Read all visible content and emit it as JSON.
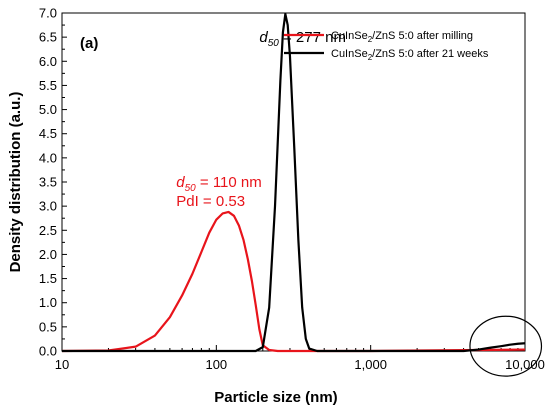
{
  "chart_data": {
    "type": "line",
    "panel_label": "(a)",
    "xlabel": "Particle size (nm)",
    "ylabel": "Density distribution (a.u.)",
    "xscale": "log",
    "xlim": [
      10,
      10000
    ],
    "ylim": [
      0,
      7.0
    ],
    "x_ticks": [
      10,
      100,
      1000,
      10000
    ],
    "x_tick_labels": [
      "10",
      "100",
      "1,000",
      "10,000"
    ],
    "y_ticks": [
      0.0,
      0.5,
      1.0,
      1.5,
      2.0,
      2.5,
      3.0,
      3.5,
      4.0,
      4.5,
      5.0,
      5.5,
      6.0,
      6.5,
      7.0
    ],
    "y_tick_labels": [
      "0.0",
      "0.5",
      "1.0",
      "1.5",
      "2.0",
      "2.5",
      "3.0",
      "3.5",
      "4.0",
      "4.5",
      "5.0",
      "5.5",
      "6.0",
      "6.5",
      "7.0"
    ],
    "grid": false,
    "legend_position": "top-right",
    "series": [
      {
        "name": "CuInSe2/ZnS 5:0 after milling",
        "color": "#e8141b",
        "x": [
          10,
          20,
          30,
          40,
          50,
          60,
          70,
          80,
          90,
          100,
          110,
          120,
          130,
          140,
          150,
          160,
          170,
          180,
          190,
          200,
          220,
          250,
          300,
          1000,
          5000,
          10000
        ],
        "y": [
          0.0,
          0.01,
          0.09,
          0.32,
          0.7,
          1.15,
          1.6,
          2.05,
          2.45,
          2.72,
          2.85,
          2.88,
          2.8,
          2.6,
          2.3,
          1.9,
          1.45,
          0.95,
          0.45,
          0.12,
          0.02,
          0.0,
          0.0,
          0.0,
          0.02,
          0.03
        ]
      },
      {
        "name": "CuInSe2/ZnS 5:0 after 21 weeks",
        "color": "#000000",
        "x": [
          10,
          100,
          180,
          200,
          220,
          240,
          260,
          270,
          280,
          290,
          300,
          320,
          340,
          360,
          380,
          400,
          450,
          1000,
          4000,
          5000,
          6000,
          7000,
          8000,
          9000,
          10000
        ],
        "y": [
          0.0,
          0.0,
          0.0,
          0.08,
          0.9,
          3.0,
          5.6,
          6.6,
          6.98,
          6.75,
          6.1,
          4.2,
          2.3,
          0.9,
          0.25,
          0.05,
          0.0,
          0.0,
          0.0,
          0.03,
          0.07,
          0.1,
          0.13,
          0.15,
          0.16
        ]
      }
    ],
    "legend_entries": [
      {
        "prefix": "CuInSe",
        "sub": "2",
        "suffix": "/ZnS 5:0 after milling",
        "color": "#e8141b"
      },
      {
        "prefix": "CuInSe",
        "sub": "2",
        "suffix": "/ZnS 5:0 after 21 weeks",
        "color": "#000000"
      }
    ],
    "annotations": [
      {
        "id": "d50-black",
        "symbol": "d",
        "sub": "50",
        "text": " = 277 nm",
        "color": "#000000",
        "x": 190,
        "y": 6.4
      },
      {
        "id": "d50-red",
        "symbol": "d",
        "sub": "50",
        "text": " = 110 nm",
        "color": "#e8141b",
        "x": 55,
        "y": 3.4
      },
      {
        "id": "pdi-red",
        "symbol": "",
        "sub": "",
        "text": "PdI = 0.53",
        "color": "#e8141b",
        "x": 55,
        "y": 3.0
      }
    ],
    "highlight_ellipse": {
      "x_center": 7500,
      "y_center": 0.1,
      "x_min": 4300,
      "x_max": 12500,
      "y_half": 0.62
    }
  }
}
